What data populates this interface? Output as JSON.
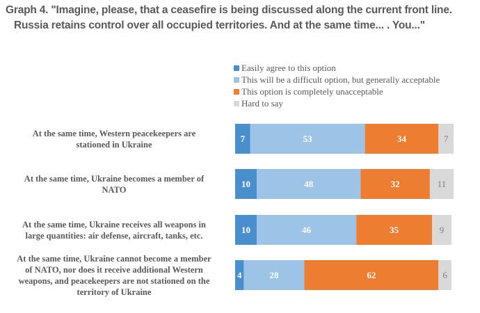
{
  "chart_data": {
    "type": "bar",
    "orientation": "horizontal",
    "stacked": true,
    "title_line1": "Graph 4. \"Imagine, please, that a ceasefire is being discussed along the current front line.",
    "title_line2": "Russia retains control over all occupied territories. And at the same time... . You...\"",
    "xlabel": "",
    "ylabel": "",
    "xlim": [
      0,
      100
    ],
    "grid": false,
    "legend_position": "top-right",
    "categories": [
      "At the same time, Western peacekeepers are stationed in Ukraine",
      "At the same time, Ukraine becomes a member of NATO",
      "At the same time, Ukraine receives all weapons in large quantities: air defense, aircraft, tanks, etc.",
      "At the same time, Ukraine cannot become a member of NATO, nor does it receive additional Western weapons, and peacekeepers are not stationed on the territory of Ukraine"
    ],
    "category_lines": [
      [
        "At the same time, Western peacekeepers are",
        "stationed in Ukraine"
      ],
      [
        "At the same time, Ukraine becomes a member of",
        "NATO"
      ],
      [
        "At the same time, Ukraine receives all weapons in",
        "large quantities: air defense, aircraft, tanks, etc."
      ],
      [
        "At the same time, Ukraine cannot become a member",
        "of NATO, nor does it receive additional Western",
        "weapons, and peacekeepers are not stationed on the",
        "territory of Ukraine"
      ]
    ],
    "series": [
      {
        "name": "Easily agree to this option",
        "color": "#4a8fcd",
        "label_color": "#ffffff",
        "values": [
          7,
          10,
          10,
          4
        ]
      },
      {
        "name": "This will be a difficult option, but generally acceptable",
        "color": "#9dc3e6",
        "label_color": "#ffffff",
        "values": [
          53,
          48,
          46,
          28
        ]
      },
      {
        "name": "This option is completely unacceptable",
        "color": "#ed7d31",
        "label_color": "#ffffff",
        "values": [
          34,
          32,
          35,
          62
        ]
      },
      {
        "name": "Hard to say",
        "color": "#d9d9d9",
        "label_color": "#7f7f7f",
        "values": [
          7,
          11,
          9,
          6
        ]
      }
    ]
  }
}
